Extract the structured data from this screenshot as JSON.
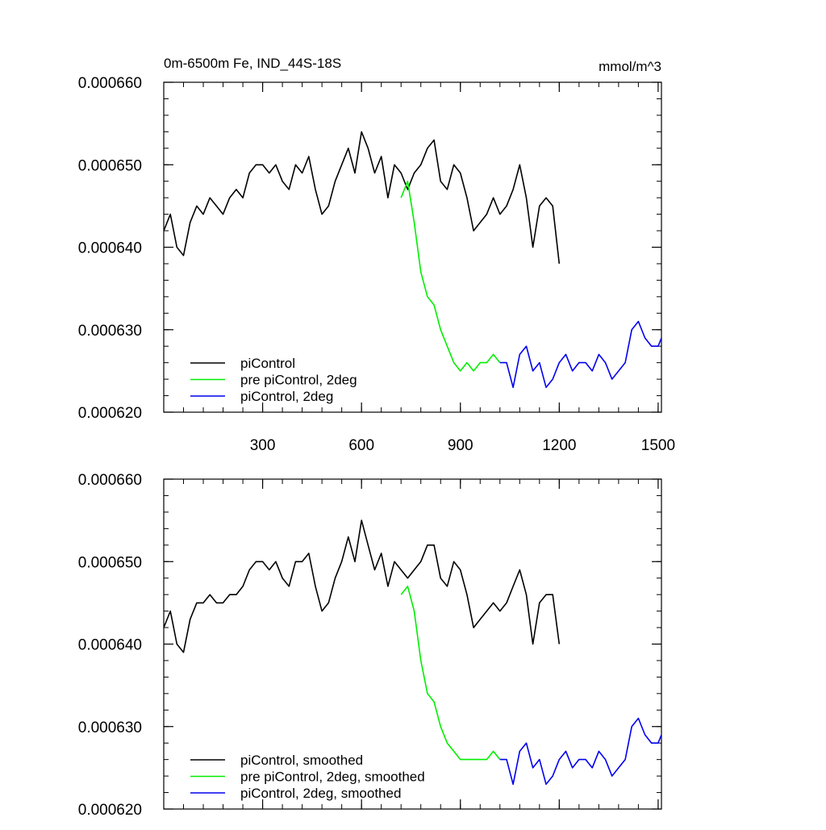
{
  "chart_data": [
    {
      "type": "line",
      "title": "0m-6500m Fe, IND_44S-18S",
      "units": "mmol/m^3",
      "xlim": [
        0,
        1510
      ],
      "ylim": [
        0.00062,
        0.00066
      ],
      "x_tick_labels": [
        "300",
        "600",
        "900",
        "1200",
        "1500"
      ],
      "x_tick_values": [
        300,
        600,
        900,
        1200,
        1500
      ],
      "y_tick_labels": [
        "0.000620",
        "0.000630",
        "0.000640",
        "0.000650",
        "0.000660"
      ],
      "y_tick_values": [
        0.00062,
        0.00063,
        0.00064,
        0.00065,
        0.00066
      ],
      "legend_position": "bottom-left",
      "series": [
        {
          "name": "piControl",
          "color": "#000000",
          "x": [
            0,
            20,
            40,
            60,
            80,
            100,
            120,
            140,
            160,
            180,
            200,
            220,
            240,
            260,
            280,
            300,
            320,
            340,
            360,
            380,
            400,
            420,
            440,
            460,
            480,
            500,
            520,
            540,
            560,
            580,
            600,
            620,
            640,
            660,
            680,
            700,
            720,
            740,
            760,
            780,
            800,
            820,
            840,
            860,
            880,
            900,
            920,
            940,
            960,
            980,
            1000,
            1020,
            1040,
            1060,
            1080,
            1100,
            1120,
            1140,
            1160,
            1180,
            1200
          ],
          "y": [
            0.000642,
            0.000644,
            0.00064,
            0.000639,
            0.000643,
            0.000645,
            0.000644,
            0.000646,
            0.000645,
            0.000644,
            0.000646,
            0.000647,
            0.000646,
            0.000649,
            0.00065,
            0.00065,
            0.000649,
            0.00065,
            0.000648,
            0.000647,
            0.00065,
            0.000649,
            0.000651,
            0.000647,
            0.000644,
            0.000645,
            0.000648,
            0.00065,
            0.000652,
            0.000649,
            0.000654,
            0.000652,
            0.000649,
            0.000651,
            0.000646,
            0.00065,
            0.000649,
            0.000647,
            0.000649,
            0.00065,
            0.000652,
            0.000653,
            0.000648,
            0.000647,
            0.00065,
            0.000649,
            0.000646,
            0.000642,
            0.000643,
            0.000644,
            0.000646,
            0.000644,
            0.000645,
            0.000647,
            0.00065,
            0.000646,
            0.00064,
            0.000645,
            0.000646,
            0.000645,
            0.000638
          ]
        },
        {
          "name": "pre piControl, 2deg",
          "color": "#00ee00",
          "x": [
            720,
            740,
            760,
            780,
            800,
            820,
            840,
            860,
            880,
            900,
            920,
            940,
            960,
            980,
            1000,
            1020
          ],
          "y": [
            0.000646,
            0.000648,
            0.000643,
            0.000637,
            0.000634,
            0.000633,
            0.00063,
            0.000628,
            0.000626,
            0.000625,
            0.000626,
            0.000625,
            0.000626,
            0.000626,
            0.000627,
            0.000626
          ]
        },
        {
          "name": "piControl, 2deg",
          "color": "#0000ee",
          "x": [
            1020,
            1040,
            1060,
            1080,
            1100,
            1120,
            1140,
            1160,
            1180,
            1200,
            1220,
            1240,
            1260,
            1280,
            1300,
            1320,
            1340,
            1360,
            1380,
            1400,
            1420,
            1440,
            1460,
            1480,
            1500,
            1510
          ],
          "y": [
            0.000626,
            0.000626,
            0.000623,
            0.000627,
            0.000628,
            0.000625,
            0.000626,
            0.000623,
            0.000624,
            0.000626,
            0.000627,
            0.000625,
            0.000626,
            0.000626,
            0.000625,
            0.000627,
            0.000626,
            0.000624,
            0.000625,
            0.000626,
            0.00063,
            0.000631,
            0.000629,
            0.000628,
            0.000628,
            0.000629
          ]
        }
      ]
    },
    {
      "type": "line",
      "xlim": [
        0,
        1510
      ],
      "ylim": [
        0.00062,
        0.00066
      ],
      "y_tick_labels": [
        "0.000620",
        "0.000630",
        "0.000640",
        "0.000650",
        "0.000660"
      ],
      "y_tick_values": [
        0.00062,
        0.00063,
        0.00064,
        0.00065,
        0.00066
      ],
      "x_tick_values": [
        300,
        600,
        900,
        1200,
        1500
      ],
      "legend_position": "bottom-left",
      "series": [
        {
          "name": "piControl, smoothed",
          "color": "#000000",
          "x": [
            0,
            20,
            40,
            60,
            80,
            100,
            120,
            140,
            160,
            180,
            200,
            220,
            240,
            260,
            280,
            300,
            320,
            340,
            360,
            380,
            400,
            420,
            440,
            460,
            480,
            500,
            520,
            540,
            560,
            580,
            600,
            620,
            640,
            660,
            680,
            700,
            720,
            740,
            760,
            780,
            800,
            820,
            840,
            860,
            880,
            900,
            920,
            940,
            960,
            980,
            1000,
            1020,
            1040,
            1060,
            1080,
            1100,
            1120,
            1140,
            1160,
            1180,
            1200
          ],
          "y": [
            0.000642,
            0.000644,
            0.00064,
            0.000639,
            0.000643,
            0.000645,
            0.000645,
            0.000646,
            0.000645,
            0.000645,
            0.000646,
            0.000646,
            0.000647,
            0.000649,
            0.00065,
            0.00065,
            0.000649,
            0.00065,
            0.000648,
            0.000647,
            0.00065,
            0.00065,
            0.000651,
            0.000647,
            0.000644,
            0.000645,
            0.000648,
            0.00065,
            0.000653,
            0.00065,
            0.000655,
            0.000652,
            0.000649,
            0.000651,
            0.000647,
            0.00065,
            0.000649,
            0.000648,
            0.000649,
            0.00065,
            0.000652,
            0.000652,
            0.000648,
            0.000647,
            0.00065,
            0.000649,
            0.000646,
            0.000642,
            0.000643,
            0.000644,
            0.000645,
            0.000644,
            0.000645,
            0.000647,
            0.000649,
            0.000646,
            0.00064,
            0.000645,
            0.000646,
            0.000646,
            0.00064
          ]
        },
        {
          "name": "pre piControl, 2deg, smoothed",
          "color": "#00ee00",
          "x": [
            720,
            740,
            760,
            780,
            800,
            820,
            840,
            860,
            880,
            900,
            920,
            940,
            960,
            980,
            1000,
            1020
          ],
          "y": [
            0.000646,
            0.000647,
            0.000644,
            0.000638,
            0.000634,
            0.000633,
            0.00063,
            0.000628,
            0.000627,
            0.000626,
            0.000626,
            0.000626,
            0.000626,
            0.000626,
            0.000627,
            0.000626
          ]
        },
        {
          "name": "piControl, 2deg, smoothed",
          "color": "#0000ee",
          "x": [
            1020,
            1040,
            1060,
            1080,
            1100,
            1120,
            1140,
            1160,
            1180,
            1200,
            1220,
            1240,
            1260,
            1280,
            1300,
            1320,
            1340,
            1360,
            1380,
            1400,
            1420,
            1440,
            1460,
            1480,
            1500,
            1510
          ],
          "y": [
            0.000626,
            0.000626,
            0.000623,
            0.000627,
            0.000628,
            0.000625,
            0.000626,
            0.000623,
            0.000624,
            0.000626,
            0.000627,
            0.000625,
            0.000626,
            0.000626,
            0.000625,
            0.000627,
            0.000626,
            0.000624,
            0.000625,
            0.000626,
            0.00063,
            0.000631,
            0.000629,
            0.000628,
            0.000628,
            0.000629
          ]
        }
      ]
    }
  ]
}
